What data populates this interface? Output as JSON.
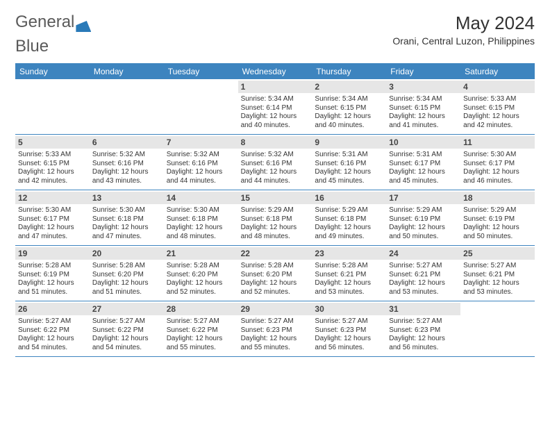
{
  "logo": {
    "text1": "General",
    "text2": "Blue"
  },
  "header": {
    "month_title": "May 2024",
    "location": "Orani, Central Luzon, Philippines"
  },
  "colors": {
    "brand": "#3d84bf",
    "logo_text": "#5a5a5a",
    "daynum_bg": "#e6e6e6",
    "text": "#333333"
  },
  "columns": [
    "Sunday",
    "Monday",
    "Tuesday",
    "Wednesday",
    "Thursday",
    "Friday",
    "Saturday"
  ],
  "first_weekday": 3,
  "days": [
    {
      "n": 1,
      "sunrise": "5:34 AM",
      "sunset": "6:14 PM",
      "daylight": "12 hours and 40 minutes."
    },
    {
      "n": 2,
      "sunrise": "5:34 AM",
      "sunset": "6:15 PM",
      "daylight": "12 hours and 40 minutes."
    },
    {
      "n": 3,
      "sunrise": "5:34 AM",
      "sunset": "6:15 PM",
      "daylight": "12 hours and 41 minutes."
    },
    {
      "n": 4,
      "sunrise": "5:33 AM",
      "sunset": "6:15 PM",
      "daylight": "12 hours and 42 minutes."
    },
    {
      "n": 5,
      "sunrise": "5:33 AM",
      "sunset": "6:15 PM",
      "daylight": "12 hours and 42 minutes."
    },
    {
      "n": 6,
      "sunrise": "5:32 AM",
      "sunset": "6:16 PM",
      "daylight": "12 hours and 43 minutes."
    },
    {
      "n": 7,
      "sunrise": "5:32 AM",
      "sunset": "6:16 PM",
      "daylight": "12 hours and 44 minutes."
    },
    {
      "n": 8,
      "sunrise": "5:32 AM",
      "sunset": "6:16 PM",
      "daylight": "12 hours and 44 minutes."
    },
    {
      "n": 9,
      "sunrise": "5:31 AM",
      "sunset": "6:16 PM",
      "daylight": "12 hours and 45 minutes."
    },
    {
      "n": 10,
      "sunrise": "5:31 AM",
      "sunset": "6:17 PM",
      "daylight": "12 hours and 45 minutes."
    },
    {
      "n": 11,
      "sunrise": "5:30 AM",
      "sunset": "6:17 PM",
      "daylight": "12 hours and 46 minutes."
    },
    {
      "n": 12,
      "sunrise": "5:30 AM",
      "sunset": "6:17 PM",
      "daylight": "12 hours and 47 minutes."
    },
    {
      "n": 13,
      "sunrise": "5:30 AM",
      "sunset": "6:18 PM",
      "daylight": "12 hours and 47 minutes."
    },
    {
      "n": 14,
      "sunrise": "5:30 AM",
      "sunset": "6:18 PM",
      "daylight": "12 hours and 48 minutes."
    },
    {
      "n": 15,
      "sunrise": "5:29 AM",
      "sunset": "6:18 PM",
      "daylight": "12 hours and 48 minutes."
    },
    {
      "n": 16,
      "sunrise": "5:29 AM",
      "sunset": "6:18 PM",
      "daylight": "12 hours and 49 minutes."
    },
    {
      "n": 17,
      "sunrise": "5:29 AM",
      "sunset": "6:19 PM",
      "daylight": "12 hours and 50 minutes."
    },
    {
      "n": 18,
      "sunrise": "5:29 AM",
      "sunset": "6:19 PM",
      "daylight": "12 hours and 50 minutes."
    },
    {
      "n": 19,
      "sunrise": "5:28 AM",
      "sunset": "6:19 PM",
      "daylight": "12 hours and 51 minutes."
    },
    {
      "n": 20,
      "sunrise": "5:28 AM",
      "sunset": "6:20 PM",
      "daylight": "12 hours and 51 minutes."
    },
    {
      "n": 21,
      "sunrise": "5:28 AM",
      "sunset": "6:20 PM",
      "daylight": "12 hours and 52 minutes."
    },
    {
      "n": 22,
      "sunrise": "5:28 AM",
      "sunset": "6:20 PM",
      "daylight": "12 hours and 52 minutes."
    },
    {
      "n": 23,
      "sunrise": "5:28 AM",
      "sunset": "6:21 PM",
      "daylight": "12 hours and 53 minutes."
    },
    {
      "n": 24,
      "sunrise": "5:27 AM",
      "sunset": "6:21 PM",
      "daylight": "12 hours and 53 minutes."
    },
    {
      "n": 25,
      "sunrise": "5:27 AM",
      "sunset": "6:21 PM",
      "daylight": "12 hours and 53 minutes."
    },
    {
      "n": 26,
      "sunrise": "5:27 AM",
      "sunset": "6:22 PM",
      "daylight": "12 hours and 54 minutes."
    },
    {
      "n": 27,
      "sunrise": "5:27 AM",
      "sunset": "6:22 PM",
      "daylight": "12 hours and 54 minutes."
    },
    {
      "n": 28,
      "sunrise": "5:27 AM",
      "sunset": "6:22 PM",
      "daylight": "12 hours and 55 minutes."
    },
    {
      "n": 29,
      "sunrise": "5:27 AM",
      "sunset": "6:23 PM",
      "daylight": "12 hours and 55 minutes."
    },
    {
      "n": 30,
      "sunrise": "5:27 AM",
      "sunset": "6:23 PM",
      "daylight": "12 hours and 56 minutes."
    },
    {
      "n": 31,
      "sunrise": "5:27 AM",
      "sunset": "6:23 PM",
      "daylight": "12 hours and 56 minutes."
    }
  ],
  "labels": {
    "sunrise_prefix": "Sunrise: ",
    "sunset_prefix": "Sunset: ",
    "daylight_prefix": "Daylight: "
  }
}
